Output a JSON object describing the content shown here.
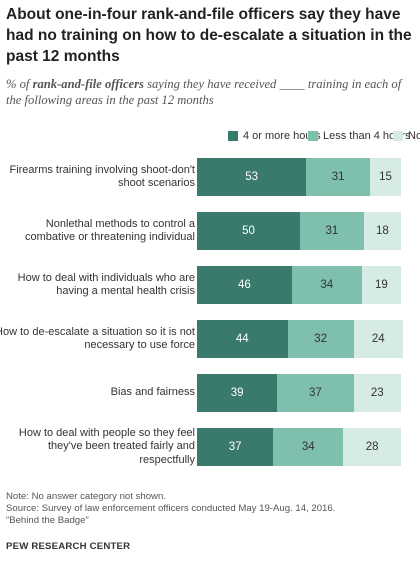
{
  "title": "About one-in-four rank-and-file officers say they have had no training on how to de-escalate a situation in the past 12 months",
  "subtitle": {
    "prefix": "% of ",
    "emphasis": "rank-and-file officers",
    "suffix": " saying they have received ____ training in each of the following areas in the past 12 months"
  },
  "colors": {
    "four_or_more": "#3a7a6c",
    "less_than_four": "#7fbfae",
    "none": "#d7ebe5",
    "text_light": "#ffffff",
    "text_dark": "#333333"
  },
  "footer": {
    "note": "Note: No answer category not shown.",
    "source": "Source: Survey of law enforcement officers conducted May 19-Aug. 14, 2016.",
    "report": "“Behind the Badge”",
    "brand": "PEW RESEARCH CENTER"
  },
  "chart_data": {
    "type": "bar",
    "orientation": "horizontal",
    "stacked": true,
    "categories": [
      "Firearms training involving shoot-don't shoot scenarios",
      "Nonlethal methods to control a combative or threatening individual",
      "How to deal with individuals who are having a mental health crisis",
      "How to de-escalate a situation so it is not necessary to use force",
      "Bias and fairness",
      "How to deal with people so they feel they've been treated fairly and respectfully"
    ],
    "series": [
      {
        "name": "4 or more hours",
        "values": [
          53,
          50,
          46,
          44,
          39,
          37
        ]
      },
      {
        "name": "Less than 4 hours",
        "values": [
          31,
          31,
          34,
          32,
          37,
          34
        ]
      },
      {
        "name": "None",
        "values": [
          15,
          18,
          19,
          24,
          23,
          28
        ]
      }
    ],
    "xlim": [
      0,
      100
    ],
    "legend_position": "top",
    "grid": false
  }
}
